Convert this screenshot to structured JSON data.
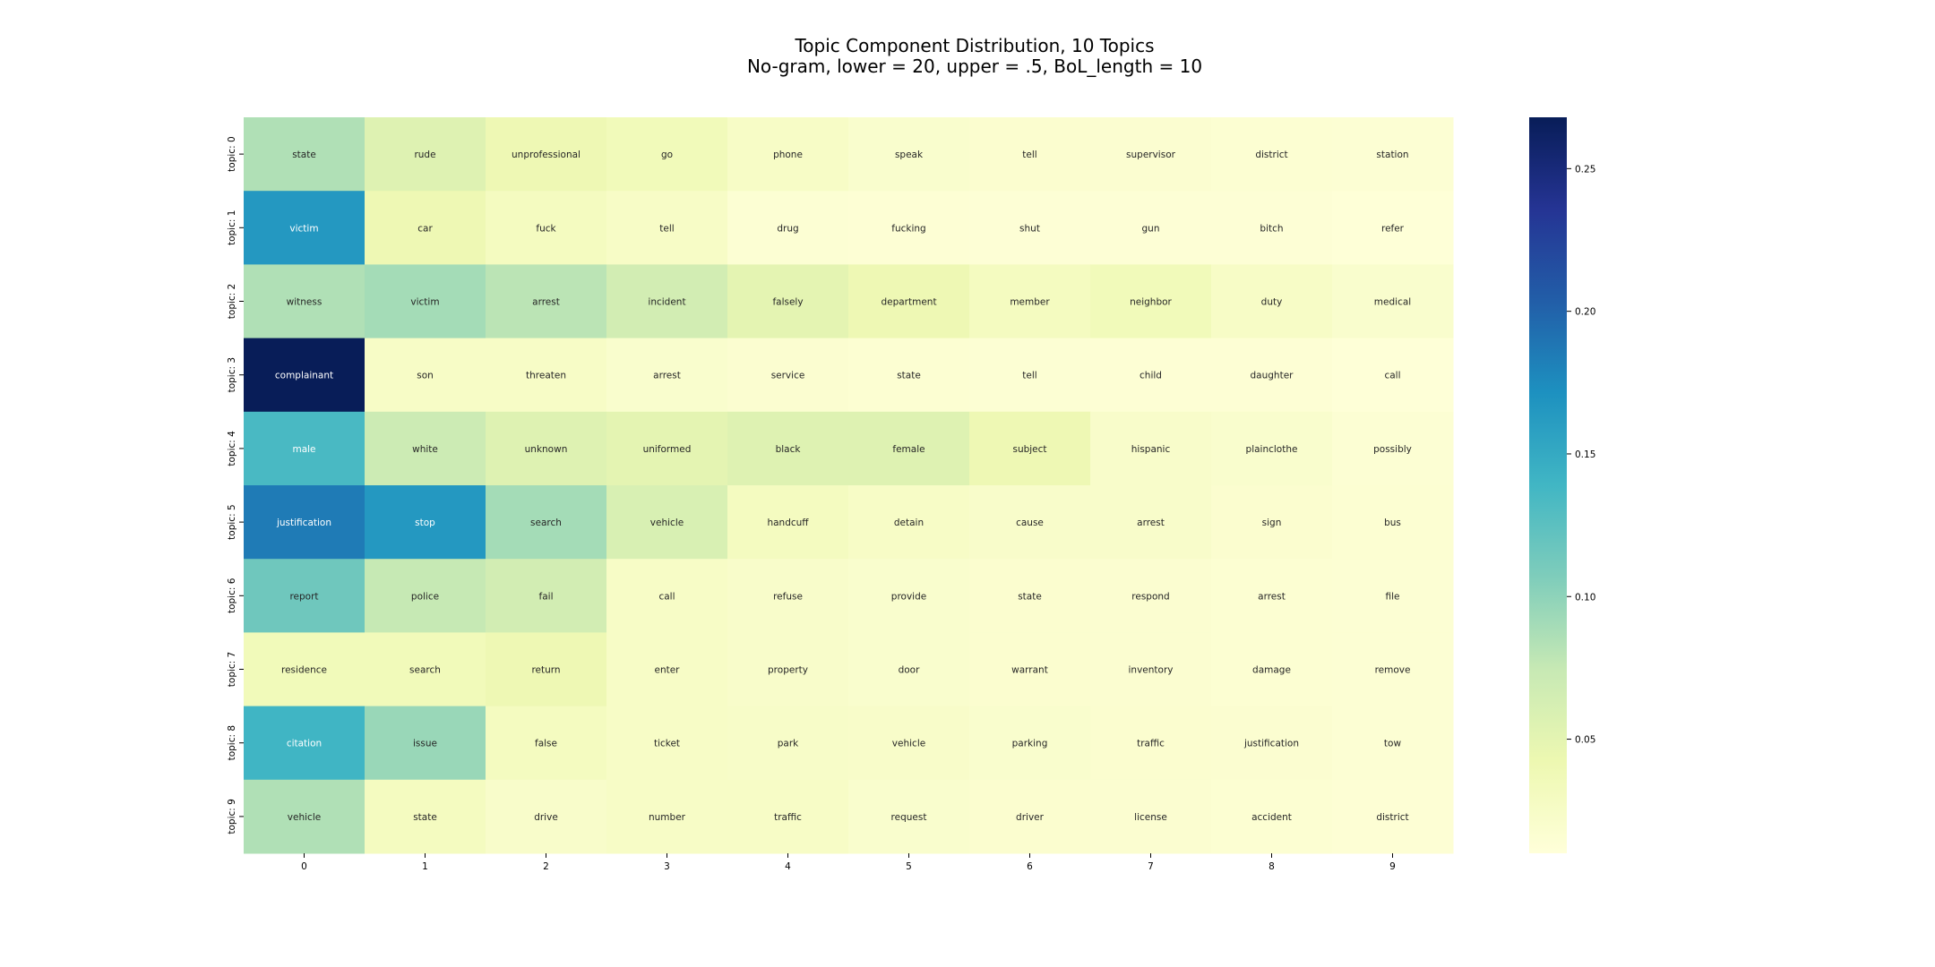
{
  "chart_data": {
    "type": "heatmap",
    "title": "Topic Component Distribution, 10 Topics",
    "subtitle": "No-gram, lower = 20, upper = .5, BoL_length = 10",
    "xlabel": "",
    "ylabel": "",
    "x_ticks": [
      "0",
      "1",
      "2",
      "3",
      "4",
      "5",
      "6",
      "7",
      "8",
      "9"
    ],
    "y_ticks": [
      "topic: 0",
      "topic: 1",
      "topic: 2",
      "topic: 3",
      "topic: 4",
      "topic: 5",
      "topic: 6",
      "topic: 7",
      "topic: 8",
      "topic: 9"
    ],
    "colormap": "YlGnBu",
    "colorbar": {
      "range": [
        0.01,
        0.268
      ],
      "ticks": [
        "0.05",
        "0.10",
        "0.15",
        "0.20",
        "0.25"
      ]
    },
    "words": [
      [
        "state",
        "rude",
        "unprofessional",
        "go",
        "phone",
        "speak",
        "tell",
        "supervisor",
        "district",
        "station"
      ],
      [
        "victim",
        "car",
        "fuck",
        "tell",
        "drug",
        "fucking",
        "shut",
        "gun",
        "bitch",
        "refer"
      ],
      [
        "witness",
        "victim",
        "arrest",
        "incident",
        "falsely",
        "department",
        "member",
        "neighbor",
        "duty",
        "medical"
      ],
      [
        "complainant",
        "son",
        "threaten",
        "arrest",
        "service",
        "state",
        "tell",
        "child",
        "daughter",
        "call"
      ],
      [
        "male",
        "white",
        "unknown",
        "uniformed",
        "black",
        "female",
        "subject",
        "hispanic",
        "plainclothe",
        "possibly"
      ],
      [
        "justification",
        "stop",
        "search",
        "vehicle",
        "handcuff",
        "detain",
        "cause",
        "arrest",
        "sign",
        "bus"
      ],
      [
        "report",
        "police",
        "fail",
        "call",
        "refuse",
        "provide",
        "state",
        "respond",
        "arrest",
        "file"
      ],
      [
        "residence",
        "search",
        "return",
        "enter",
        "property",
        "door",
        "warrant",
        "inventory",
        "damage",
        "remove"
      ],
      [
        "citation",
        "issue",
        "false",
        "ticket",
        "park",
        "vehicle",
        "parking",
        "traffic",
        "justification",
        "tow"
      ],
      [
        "vehicle",
        "state",
        "drive",
        "number",
        "traffic",
        "request",
        "driver",
        "license",
        "accident",
        "district"
      ]
    ],
    "values": [
      [
        0.085,
        0.055,
        0.04,
        0.035,
        0.025,
        0.02,
        0.018,
        0.017,
        0.016,
        0.015
      ],
      [
        0.165,
        0.04,
        0.03,
        0.025,
        0.015,
        0.014,
        0.013,
        0.013,
        0.013,
        0.012
      ],
      [
        0.085,
        0.09,
        0.08,
        0.065,
        0.05,
        0.04,
        0.03,
        0.035,
        0.025,
        0.02
      ],
      [
        0.268,
        0.025,
        0.025,
        0.02,
        0.017,
        0.016,
        0.015,
        0.014,
        0.014,
        0.012
      ],
      [
        0.135,
        0.07,
        0.055,
        0.05,
        0.055,
        0.055,
        0.04,
        0.022,
        0.02,
        0.015
      ],
      [
        0.185,
        0.165,
        0.09,
        0.06,
        0.03,
        0.025,
        0.022,
        0.022,
        0.018,
        0.016
      ],
      [
        0.115,
        0.075,
        0.065,
        0.025,
        0.022,
        0.02,
        0.018,
        0.017,
        0.016,
        0.015
      ],
      [
        0.035,
        0.035,
        0.04,
        0.025,
        0.022,
        0.02,
        0.018,
        0.017,
        0.016,
        0.015
      ],
      [
        0.14,
        0.095,
        0.03,
        0.025,
        0.024,
        0.023,
        0.02,
        0.018,
        0.017,
        0.015
      ],
      [
        0.085,
        0.03,
        0.022,
        0.025,
        0.025,
        0.02,
        0.018,
        0.017,
        0.016,
        0.014
      ]
    ]
  }
}
